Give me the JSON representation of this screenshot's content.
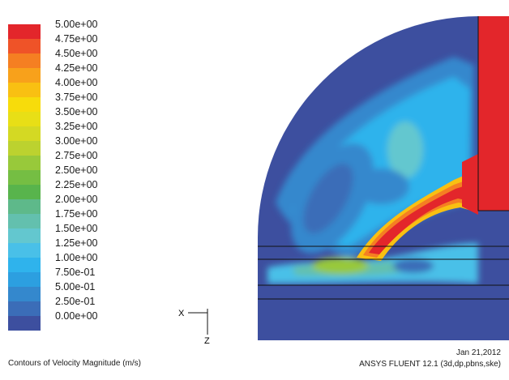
{
  "legend": {
    "levels": [
      {
        "label": "5.00e+00",
        "color": "#e3262b"
      },
      {
        "label": "4.75e+00",
        "color": "#ef5328"
      },
      {
        "label": "4.50e+00",
        "color": "#f57f22"
      },
      {
        "label": "4.25e+00",
        "color": "#f8a11b"
      },
      {
        "label": "4.00e+00",
        "color": "#f9c012"
      },
      {
        "label": "3.75e+00",
        "color": "#f7dc0b"
      },
      {
        "label": "3.50e+00",
        "color": "#e8df16"
      },
      {
        "label": "3.25e+00",
        "color": "#d4d923"
      },
      {
        "label": "3.00e+00",
        "color": "#bcd22f"
      },
      {
        "label": "2.75e+00",
        "color": "#98c93a"
      },
      {
        "label": "2.50e+00",
        "color": "#75be43"
      },
      {
        "label": "2.25e+00",
        "color": "#58b44c"
      },
      {
        "label": "2.00e+00",
        "color": "#5eb98a"
      },
      {
        "label": "1.75e+00",
        "color": "#63c0ae"
      },
      {
        "label": "1.50e+00",
        "color": "#63c7cf"
      },
      {
        "label": "1.25e+00",
        "color": "#49c0e8"
      },
      {
        "label": "1.00e+00",
        "color": "#2fb3ec"
      },
      {
        "label": "7.50e-01",
        "color": "#2c9fe0"
      },
      {
        "label": "5.00e-01",
        "color": "#3488cd"
      },
      {
        "label": "2.50e-01",
        "color": "#3b6db8"
      },
      {
        "label": "0.00e+00",
        "color": "#3d4f9f"
      }
    ]
  },
  "axes": {
    "x_label": "X",
    "z_label": "Z"
  },
  "captions": {
    "title": "Contours of Velocity Magnitude (m/s)",
    "date": "Jan 21,2012",
    "solver": "ANSYS FLUENT 12.1 (3d,dp,pbns,ske)"
  },
  "colors": {
    "background": "#ffffff",
    "mesh_line": "#111111",
    "base": "#3d4f9f"
  }
}
